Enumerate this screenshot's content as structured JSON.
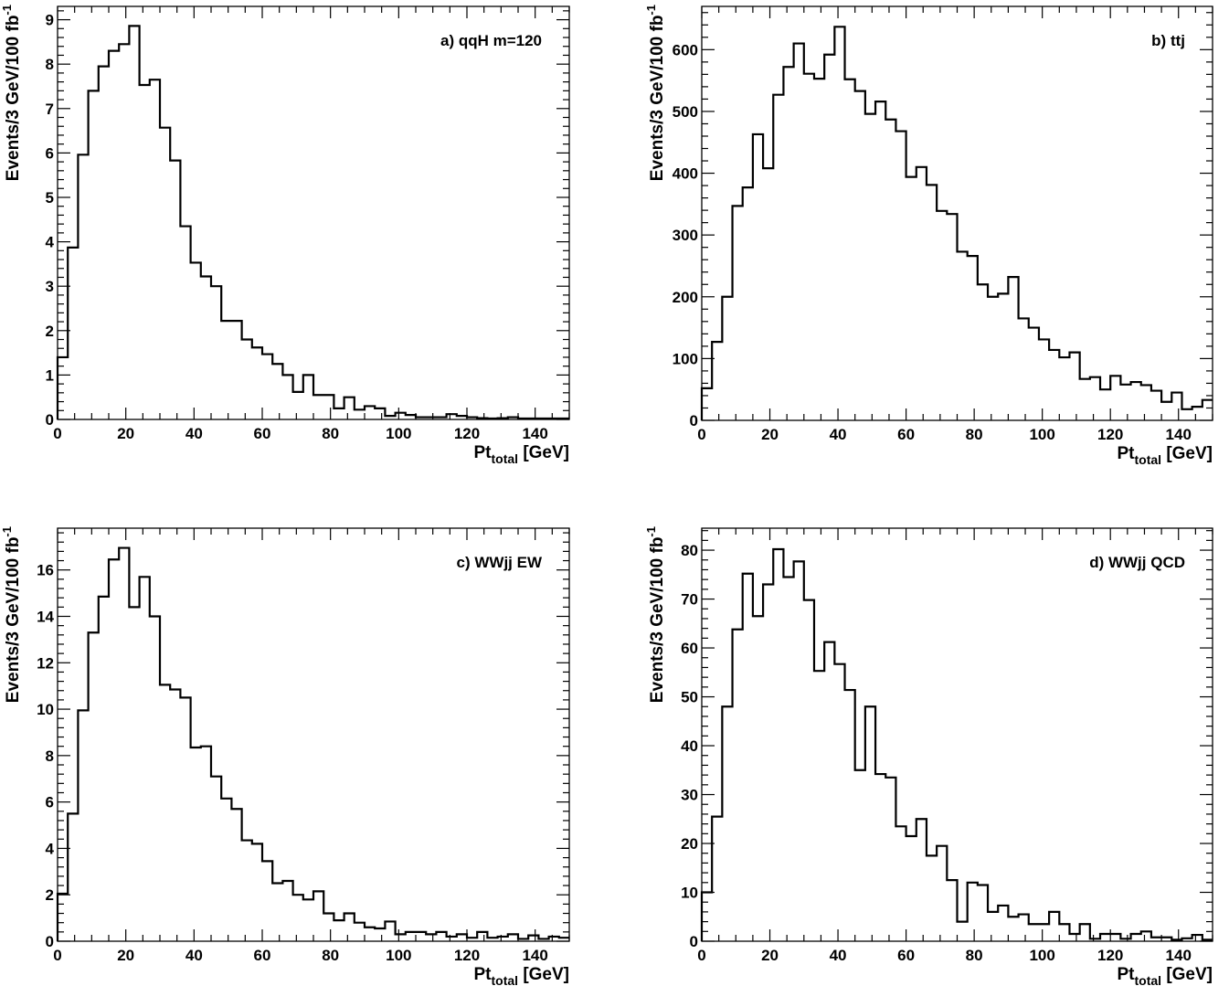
{
  "chart_data": [
    {
      "type": "histogram",
      "title": "a) qqH m=120",
      "xlabel_main": "Pt",
      "xlabel_sub": "total",
      "xlabel_unit": " [GeV]",
      "ylabel_main": "Events/3 GeV/100 fb",
      "ylabel_sup": "-1",
      "xlim": [
        0,
        150
      ],
      "ylim": [
        0,
        9.3
      ],
      "xticks": [
        0,
        20,
        40,
        60,
        80,
        100,
        120,
        140
      ],
      "yticks": [
        0,
        1,
        2,
        3,
        4,
        5,
        6,
        7,
        8,
        9
      ],
      "bin_width": 3,
      "values": [
        1.4,
        3.87,
        5.96,
        7.4,
        7.95,
        8.3,
        8.45,
        8.86,
        7.53,
        7.65,
        6.57,
        5.83,
        4.35,
        3.53,
        3.22,
        3.0,
        2.22,
        2.22,
        1.8,
        1.62,
        1.47,
        1.25,
        1.0,
        0.62,
        1.0,
        0.55,
        0.55,
        0.25,
        0.5,
        0.22,
        0.3,
        0.25,
        0.08,
        0.15,
        0.1,
        0.05,
        0.05,
        0.05,
        0.12,
        0.08,
        0.05,
        0.03,
        0.02,
        0.03,
        0.05,
        0.02,
        0.02,
        0.02,
        0.02,
        0.02
      ]
    },
    {
      "type": "histogram",
      "title": "b) ttj",
      "xlabel_main": "Pt",
      "xlabel_sub": "total",
      "xlabel_unit": " [GeV]",
      "ylabel_main": "Events/3 GeV/100 fb",
      "ylabel_sup": "-1",
      "xlim": [
        0,
        150
      ],
      "ylim": [
        0,
        670
      ],
      "xticks": [
        0,
        20,
        40,
        60,
        80,
        100,
        120,
        140
      ],
      "yticks": [
        0,
        100,
        200,
        300,
        400,
        500,
        600
      ],
      "bin_width": 3,
      "values": [
        52,
        127,
        200,
        347,
        377,
        463,
        408,
        527,
        572,
        610,
        561,
        553,
        592,
        637,
        552,
        533,
        496,
        516,
        487,
        468,
        394,
        410,
        381,
        339,
        334,
        273,
        266,
        220,
        200,
        205,
        232,
        165,
        150,
        131,
        114,
        102,
        110,
        67,
        70,
        50,
        72,
        58,
        62,
        57,
        48,
        30,
        45,
        18,
        22,
        33
      ]
    },
    {
      "type": "histogram",
      "title": "c) WWjj EW",
      "xlabel_main": "Pt",
      "xlabel_sub": "total",
      "xlabel_unit": " [GeV]",
      "ylabel_main": "Events/3 GeV/100 fb",
      "ylabel_sup": "-1",
      "xlim": [
        0,
        150
      ],
      "ylim": [
        0,
        17.8
      ],
      "xticks": [
        0,
        20,
        40,
        60,
        80,
        100,
        120,
        140
      ],
      "yticks": [
        0,
        2,
        4,
        6,
        8,
        10,
        12,
        14,
        16
      ],
      "bin_width": 3,
      "values": [
        2.05,
        5.5,
        9.95,
        13.3,
        14.85,
        16.45,
        16.95,
        14.4,
        15.7,
        14.0,
        11.05,
        10.85,
        10.5,
        8.35,
        8.4,
        7.1,
        6.15,
        5.7,
        4.35,
        4.2,
        3.45,
        2.5,
        2.6,
        2.0,
        1.8,
        2.15,
        1.2,
        0.9,
        1.2,
        0.8,
        0.6,
        0.55,
        0.85,
        0.3,
        0.4,
        0.4,
        0.3,
        0.4,
        0.2,
        0.3,
        0.15,
        0.4,
        0.15,
        0.2,
        0.3,
        0.1,
        0.25,
        0.1,
        0.2,
        0.15
      ]
    },
    {
      "type": "histogram",
      "title": "d) WWjj QCD",
      "xlabel_main": "Pt",
      "xlabel_sub": "total",
      "xlabel_unit": " [GeV]",
      "ylabel_main": "Events/3 GeV/100 fb",
      "ylabel_sup": "-1",
      "xlim": [
        0,
        150
      ],
      "ylim": [
        0,
        84.5
      ],
      "xticks": [
        0,
        20,
        40,
        60,
        80,
        100,
        120,
        140
      ],
      "yticks": [
        0,
        10,
        20,
        30,
        40,
        50,
        60,
        70,
        80
      ],
      "bin_width": 3,
      "values": [
        10,
        25.5,
        48,
        63.8,
        75.2,
        66.5,
        73,
        80.2,
        74.5,
        77.7,
        69.8,
        55.3,
        61.2,
        56.7,
        51.4,
        35,
        48,
        34.2,
        33.5,
        23.5,
        21.5,
        25,
        17.5,
        19.5,
        12.5,
        4,
        12,
        11.5,
        6,
        7.3,
        5,
        5.5,
        3.5,
        3.5,
        6,
        3.5,
        1.5,
        3.5,
        0.5,
        1.5,
        1.5,
        0.5,
        1.5,
        2,
        0.8,
        0.8,
        0.3,
        0.6,
        1.3,
        0.3
      ]
    }
  ]
}
